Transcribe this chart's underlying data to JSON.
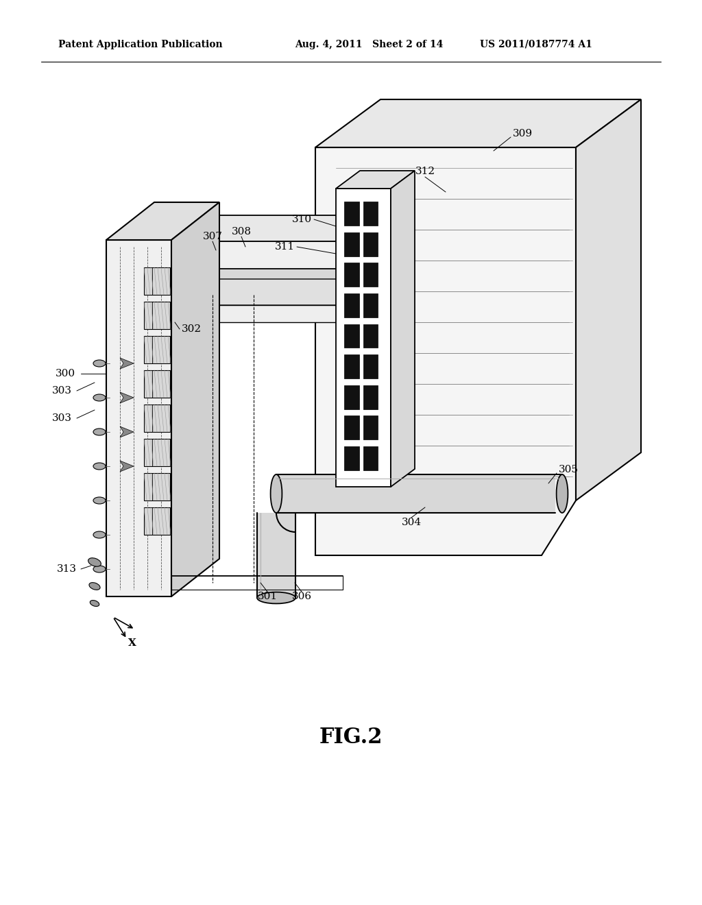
{
  "background_color": "#ffffff",
  "header_left": "Patent Application Publication",
  "header_center": "Aug. 4, 2011   Sheet 2 of 14",
  "header_right": "US 2011/0187774 A1",
  "figure_label": "FIG.2",
  "line_color": "#000000",
  "gray_light": "#e8e8e8",
  "gray_med": "#cccccc",
  "gray_dark": "#888888",
  "black_fill": "#111111"
}
